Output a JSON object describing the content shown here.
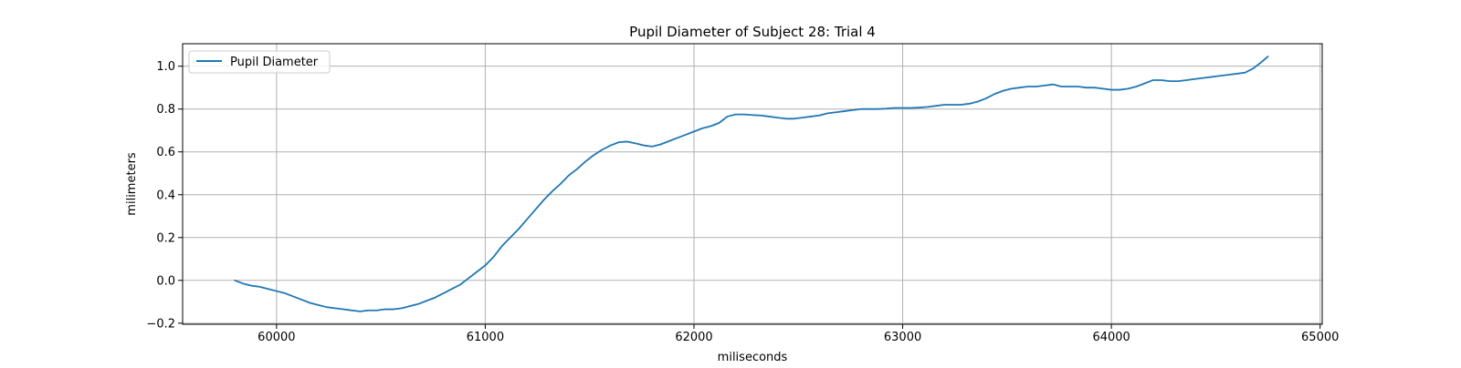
{
  "chart_data": {
    "type": "line",
    "title": "Pupil Diameter of Subject 28: Trial 4",
    "xlabel": "miliseconds",
    "ylabel": "milimeters",
    "xlim": [
      59550,
      65010
    ],
    "ylim": [
      -0.205,
      1.105
    ],
    "xticks": [
      60000,
      61000,
      62000,
      63000,
      64000,
      65000
    ],
    "xtick_labels": [
      "60000",
      "61000",
      "62000",
      "63000",
      "64000",
      "65000"
    ],
    "yticks": [
      -0.2,
      0.0,
      0.2,
      0.4,
      0.6,
      0.8,
      1.0
    ],
    "ytick_labels": [
      "−0.2",
      "0.0",
      "0.2",
      "0.4",
      "0.6",
      "0.8",
      "1.0"
    ],
    "grid": true,
    "legend": {
      "position": "top-left",
      "entries": [
        "Pupil Diameter"
      ]
    },
    "colors": {
      "series": "#1f77b4",
      "grid": "#b0b0b0",
      "axes": "#000000",
      "legend_border": "#cccccc"
    },
    "series": [
      {
        "name": "Pupil Diameter",
        "x": [
          59800,
          59840,
          59880,
          59920,
          59960,
          60000,
          60040,
          60080,
          60120,
          60160,
          60200,
          60240,
          60280,
          60320,
          60360,
          60400,
          60440,
          60480,
          60520,
          60560,
          60600,
          60640,
          60680,
          60720,
          60760,
          60800,
          60840,
          60880,
          60920,
          60960,
          61000,
          61040,
          61080,
          61120,
          61160,
          61200,
          61240,
          61280,
          61320,
          61360,
          61400,
          61440,
          61480,
          61520,
          61560,
          61600,
          61640,
          61680,
          61720,
          61760,
          61800,
          61840,
          61880,
          61920,
          61960,
          62000,
          62040,
          62080,
          62120,
          62160,
          62200,
          62240,
          62280,
          62320,
          62360,
          62400,
          62440,
          62480,
          62520,
          62560,
          62600,
          62640,
          62680,
          62720,
          62760,
          62800,
          62840,
          62880,
          62920,
          62960,
          63000,
          63040,
          63080,
          63120,
          63160,
          63200,
          63240,
          63280,
          63320,
          63360,
          63400,
          63440,
          63480,
          63520,
          63560,
          63600,
          63640,
          63680,
          63720,
          63760,
          63800,
          63840,
          63880,
          63920,
          63960,
          64000,
          64040,
          64080,
          64120,
          64160,
          64200,
          64240,
          64280,
          64320,
          64360,
          64400,
          64440,
          64480,
          64520,
          64560,
          64600,
          64640,
          64680,
          64720,
          64750
        ],
        "y": [
          0.0,
          -0.015,
          -0.025,
          -0.03,
          -0.04,
          -0.05,
          -0.06,
          -0.075,
          -0.09,
          -0.105,
          -0.115,
          -0.125,
          -0.13,
          -0.135,
          -0.14,
          -0.145,
          -0.14,
          -0.14,
          -0.135,
          -0.135,
          -0.13,
          -0.12,
          -0.11,
          -0.095,
          -0.08,
          -0.06,
          -0.04,
          -0.02,
          0.01,
          0.04,
          0.07,
          0.11,
          0.16,
          0.2,
          0.24,
          0.285,
          0.33,
          0.375,
          0.415,
          0.45,
          0.49,
          0.52,
          0.555,
          0.585,
          0.61,
          0.63,
          0.645,
          0.648,
          0.64,
          0.63,
          0.625,
          0.635,
          0.65,
          0.665,
          0.68,
          0.695,
          0.71,
          0.72,
          0.735,
          0.765,
          0.775,
          0.775,
          0.772,
          0.77,
          0.765,
          0.76,
          0.755,
          0.755,
          0.76,
          0.765,
          0.77,
          0.78,
          0.785,
          0.79,
          0.795,
          0.8,
          0.8,
          0.8,
          0.802,
          0.805,
          0.805,
          0.805,
          0.807,
          0.81,
          0.815,
          0.82,
          0.82,
          0.82,
          0.825,
          0.835,
          0.85,
          0.87,
          0.885,
          0.895,
          0.9,
          0.905,
          0.905,
          0.91,
          0.915,
          0.905,
          0.905,
          0.905,
          0.9,
          0.9,
          0.895,
          0.89,
          0.89,
          0.895,
          0.905,
          0.92,
          0.935,
          0.935,
          0.93,
          0.93,
          0.935,
          0.94,
          0.945,
          0.95,
          0.955,
          0.96,
          0.965,
          0.97,
          0.99,
          1.02,
          1.045
        ]
      }
    ]
  }
}
